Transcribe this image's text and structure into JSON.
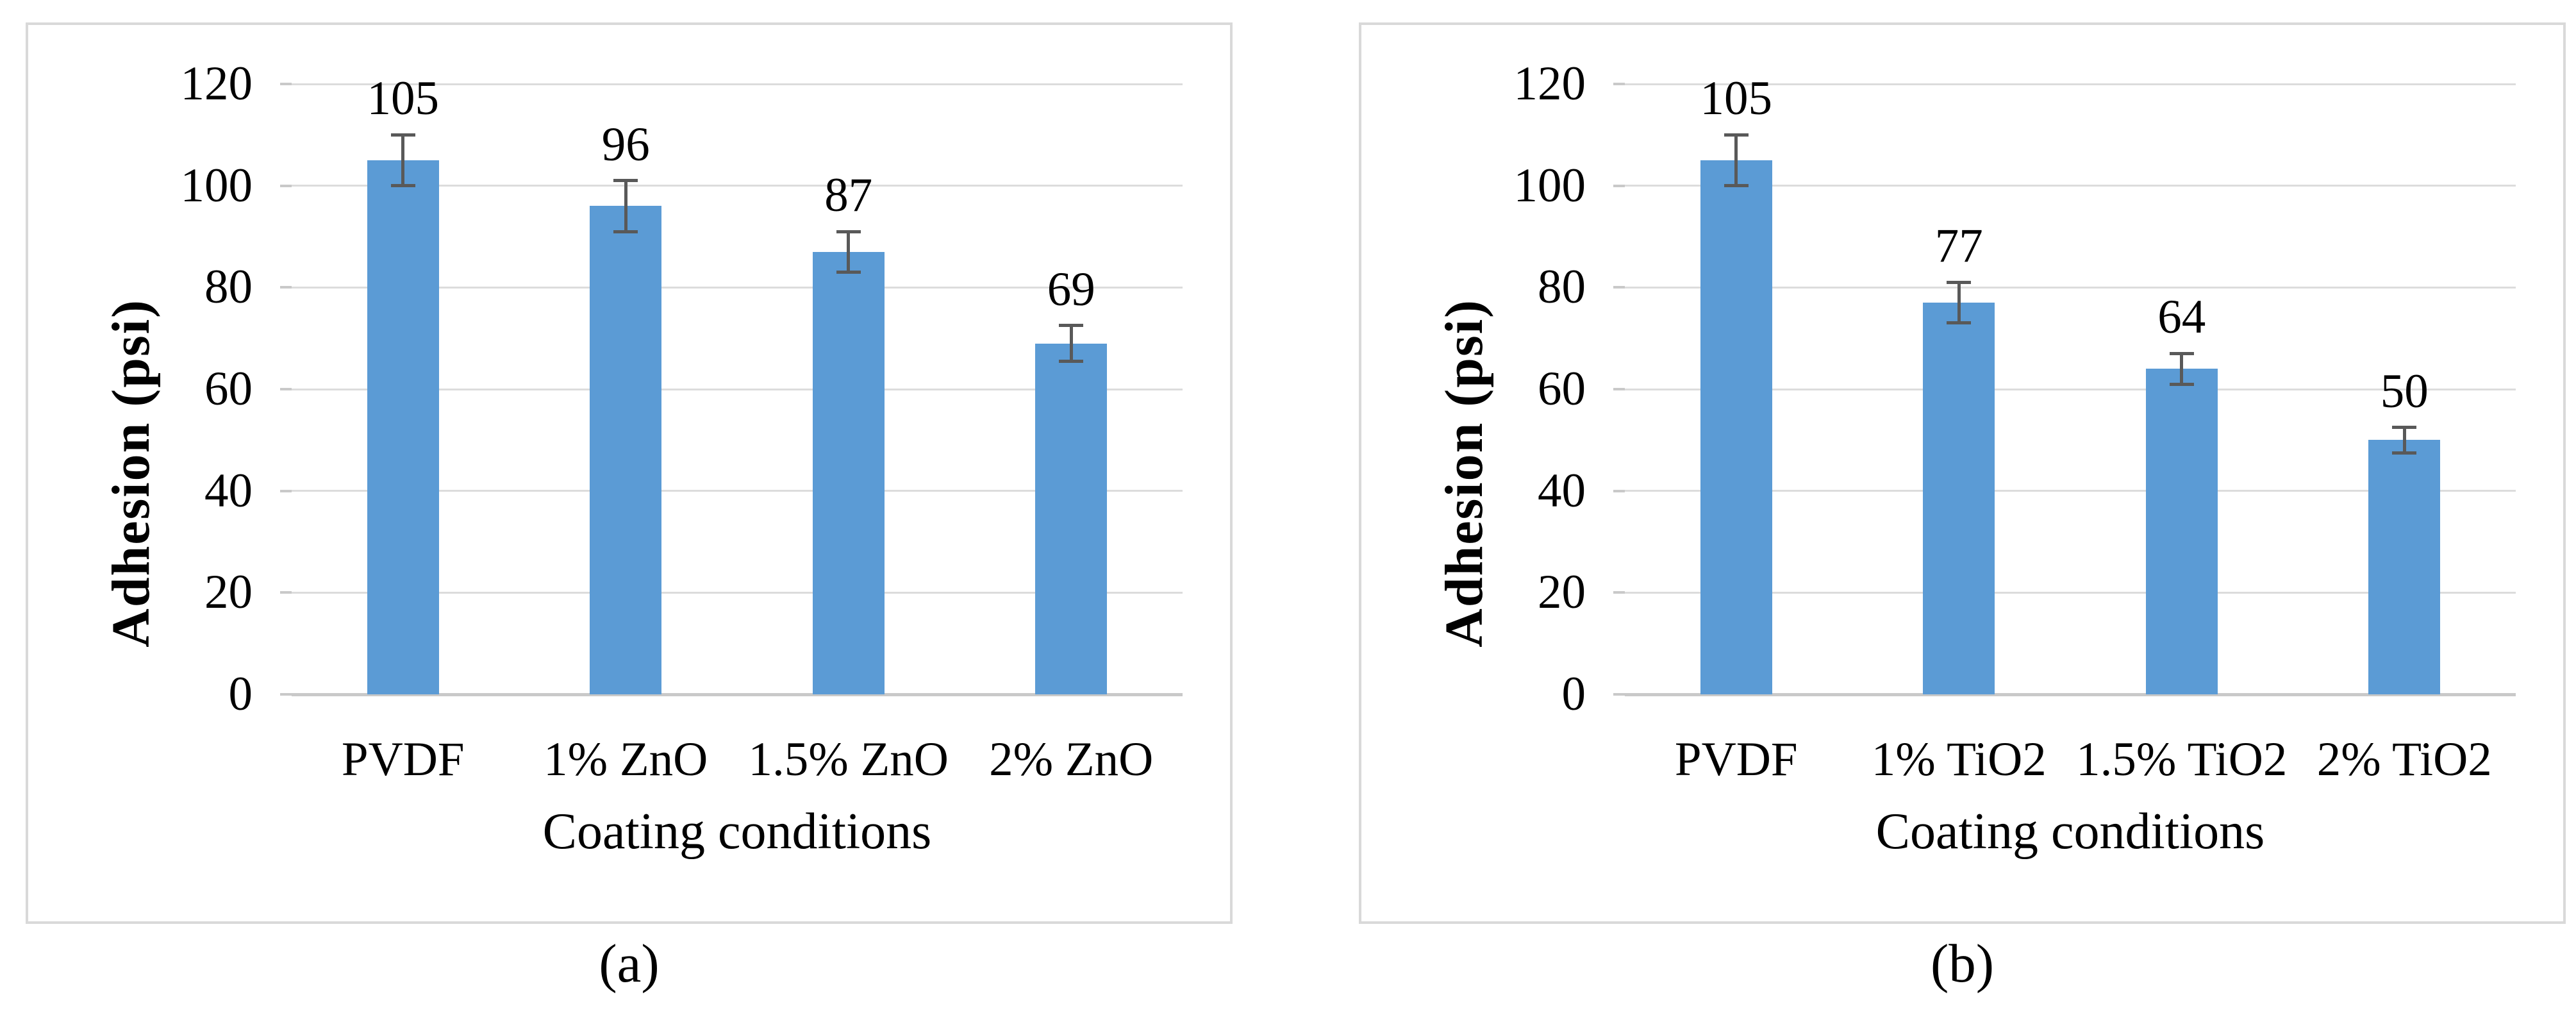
{
  "colors": {
    "bar": "#5b9bd5",
    "gridline": "#dcdcdc",
    "axis_line": "#c9c9c9",
    "error_bar": "#595959",
    "panel_border": "#d9d9d9",
    "text": "#000000"
  },
  "chart_data": [
    {
      "type": "bar",
      "panel": "a",
      "caption": "(a)",
      "categories": [
        "PVDF",
        "1% ZnO",
        "1.5% ZnO",
        "2% ZnO"
      ],
      "values": [
        105,
        96,
        87,
        69
      ],
      "data_labels": [
        "105",
        "96",
        "87",
        "69"
      ],
      "errors": [
        5,
        5,
        4,
        3.5
      ],
      "xlabel": "Coating conditions",
      "ylabel": "Adhesion (psi)",
      "ylim": [
        0,
        120
      ],
      "yticks": [
        0,
        20,
        40,
        60,
        80,
        100,
        120
      ],
      "grid": true,
      "legend": false
    },
    {
      "type": "bar",
      "panel": "b",
      "caption": "(b)",
      "categories": [
        "PVDF",
        "1% TiO2",
        "1.5% TiO2",
        "2% TiO2"
      ],
      "values": [
        105,
        77,
        64,
        50
      ],
      "data_labels": [
        "105",
        "77",
        "64",
        "50"
      ],
      "errors": [
        5,
        4,
        3,
        2.5
      ],
      "xlabel": "Coating conditions",
      "ylabel": "Adhesion (psi)",
      "ylim": [
        0,
        120
      ],
      "yticks": [
        0,
        20,
        40,
        60,
        80,
        100,
        120
      ],
      "grid": true,
      "legend": false
    }
  ]
}
